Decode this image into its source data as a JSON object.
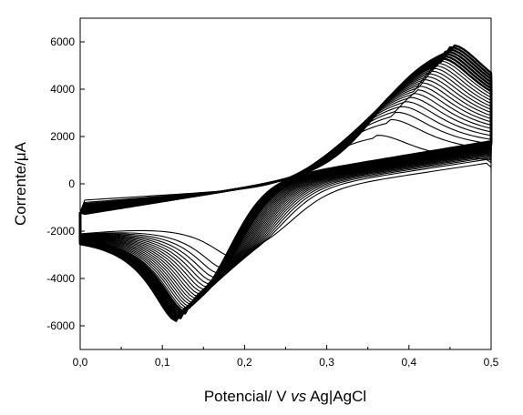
{
  "chart_data": {
    "type": "line",
    "title": "",
    "xlabel_parts": [
      "Potencial/ V ",
      "vs",
      " Ag|AgCl"
    ],
    "ylabel": "Corrente/μA",
    "xlim": [
      0.0,
      0.5
    ],
    "ylim": [
      -7000,
      7000
    ],
    "x_ticks": [
      0.0,
      0.1,
      0.2,
      0.3,
      0.4,
      0.5
    ],
    "x_tick_labels": [
      "0,0",
      "0,1",
      "0,2",
      "0,3",
      "0,4",
      "0,5"
    ],
    "y_ticks": [
      -6000,
      -4000,
      -2000,
      0,
      2000,
      4000,
      6000
    ],
    "y_tick_labels": [
      "-6000",
      "-4000",
      "-2000",
      "0",
      "2000",
      "4000",
      "6000"
    ],
    "grid": false,
    "legend": "none",
    "line_color": "#000000",
    "cycles": {
      "count": 25,
      "first": {
        "anodic_peak": {
          "x": 0.36,
          "y": 2050
        },
        "cathodic_peak": {
          "x": 0.19,
          "y": -3100
        },
        "i_start": -1200,
        "i_end_forward": 550,
        "i_end_reverse": 700,
        "baseline_start_forward": -700,
        "baseline_end_forward": 400,
        "baseline_start_reverse": -1700,
        "baseline_end_reverse": 900
      },
      "last": {
        "anodic_peak": {
          "x": 0.45,
          "y": 5850
        },
        "cathodic_peak": {
          "x": 0.12,
          "y": -5800
        },
        "i_start": -1200,
        "i_end_forward": 2000,
        "i_end_reverse": 1800,
        "baseline_start_forward": -1300,
        "baseline_end_forward": 1500,
        "baseline_start_reverse": -1100,
        "baseline_end_reverse": 1800
      }
    }
  }
}
